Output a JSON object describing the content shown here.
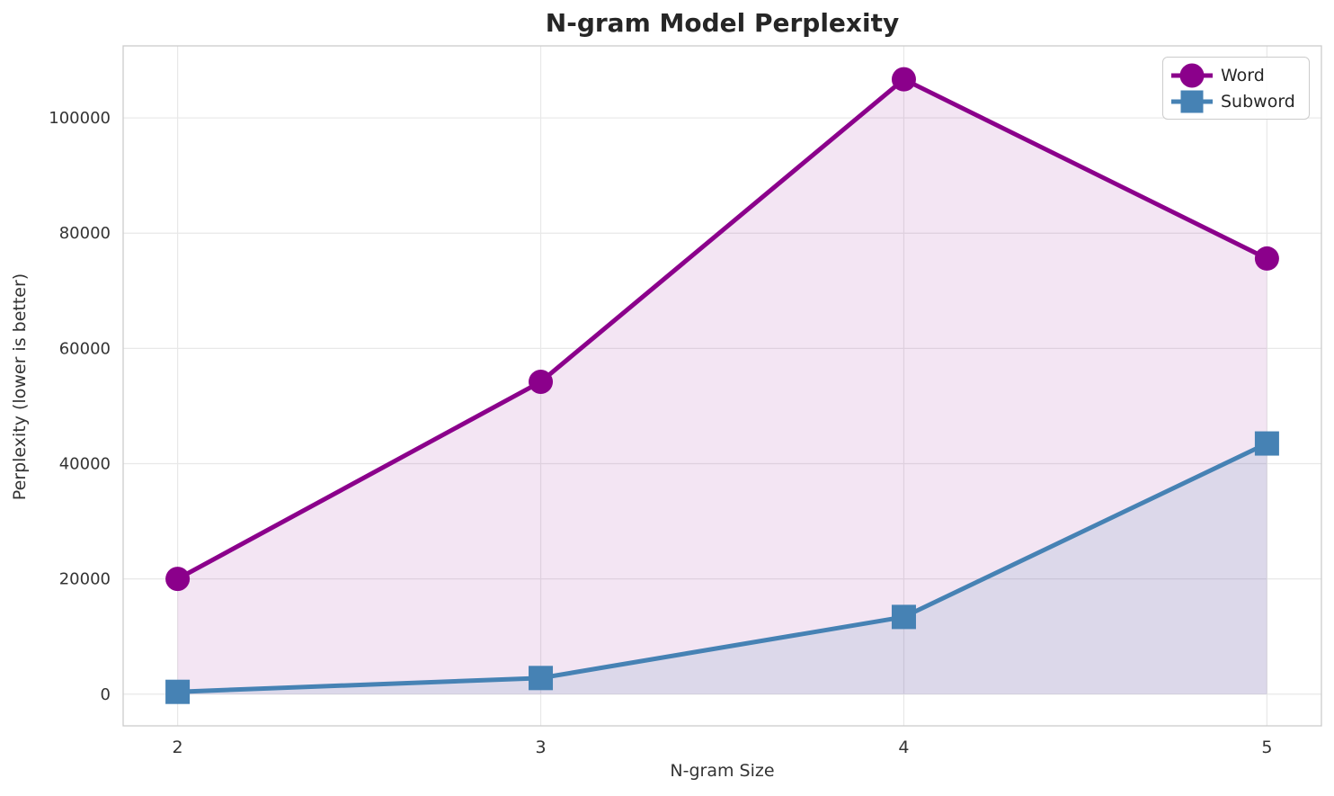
{
  "chart_data": {
    "type": "line",
    "title": "N-gram Model Perplexity",
    "xlabel": "N-gram Size",
    "ylabel": "Perplexity (lower is better)",
    "x": [
      2,
      3,
      4,
      5
    ],
    "xtick_labels": [
      "2",
      "3",
      "4",
      "5"
    ],
    "yticks": [
      0,
      20000,
      40000,
      60000,
      80000,
      100000
    ],
    "ytick_labels": [
      "0",
      "20000",
      "40000",
      "60000",
      "80000",
      "100000"
    ],
    "xlim": [
      1.85,
      5.15
    ],
    "ylim": [
      -5500,
      112500
    ],
    "grid": true,
    "legend_position": "upper right",
    "series": [
      {
        "name": "Word",
        "marker": "circle",
        "color": "#8B008B",
        "fill_color": "rgba(139,0,139,0.10)",
        "values": [
          20000,
          54200,
          106700,
          75600
        ],
        "fill_to_zero": true
      },
      {
        "name": "Subword",
        "marker": "square",
        "color": "#4682B4",
        "fill_color": "rgba(70,130,180,0.13)",
        "values": [
          400,
          2800,
          13400,
          43500
        ],
        "fill_to_zero": true
      }
    ],
    "colors": {
      "grid": "#E8E8E8",
      "spine": "#CCCCCC",
      "tick_text": "#333333",
      "title_text": "#262626"
    }
  }
}
